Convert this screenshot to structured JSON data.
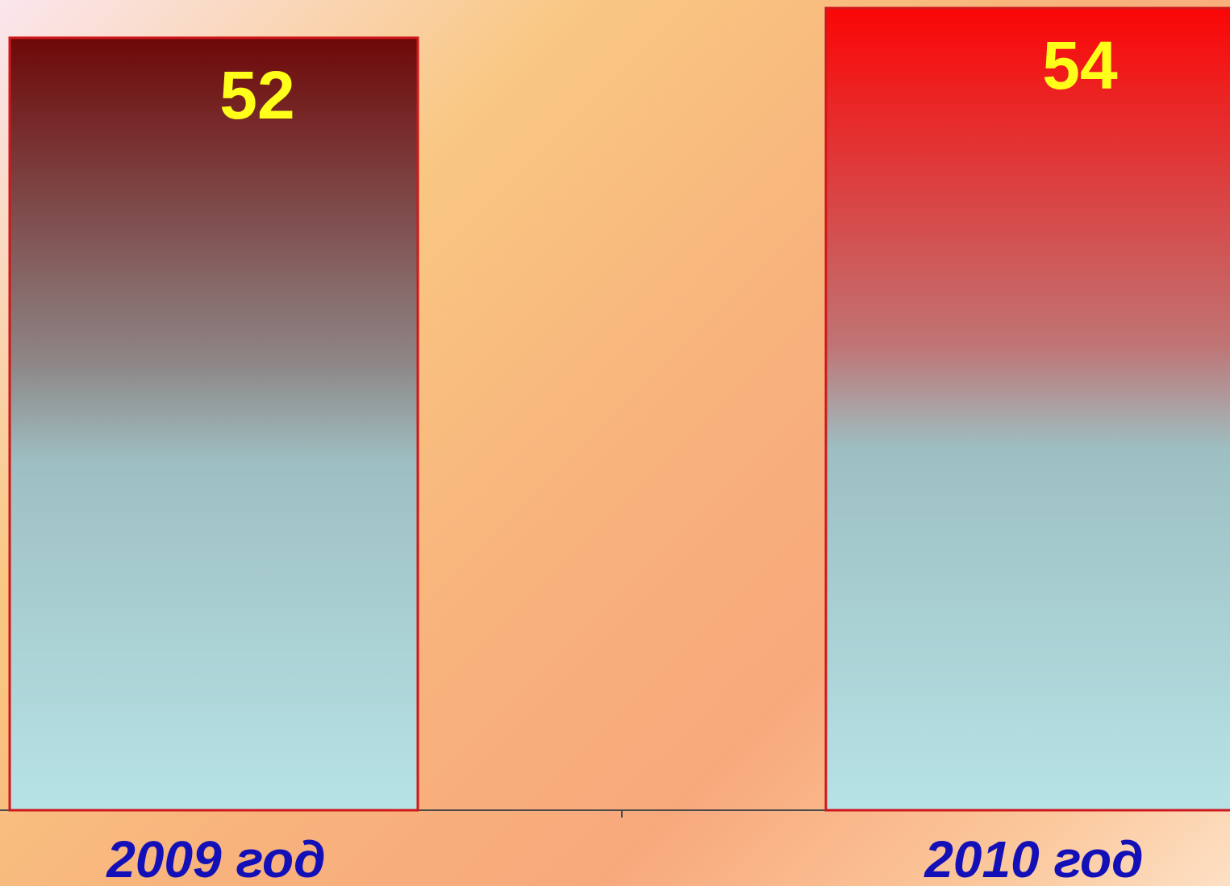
{
  "chart_data": {
    "type": "bar",
    "categories": [
      "2009 год",
      "2010 год"
    ],
    "values": [
      52,
      54
    ],
    "data_labels": [
      "52",
      "54"
    ],
    "title": "",
    "xlabel": "",
    "ylabel": "",
    "grid": false,
    "legend": "none",
    "bar_gradients": [
      [
        "#6e0808",
        "#8e8686",
        "#9ebfc2",
        "#b7e3e6"
      ],
      [
        "#fb0606",
        "#c07474",
        "#9dbfc2",
        "#b7e3e6"
      ]
    ],
    "bar_border_color": "#d0181c",
    "data_label_color": "#ffff1a",
    "category_label_color": "#1410b8"
  }
}
